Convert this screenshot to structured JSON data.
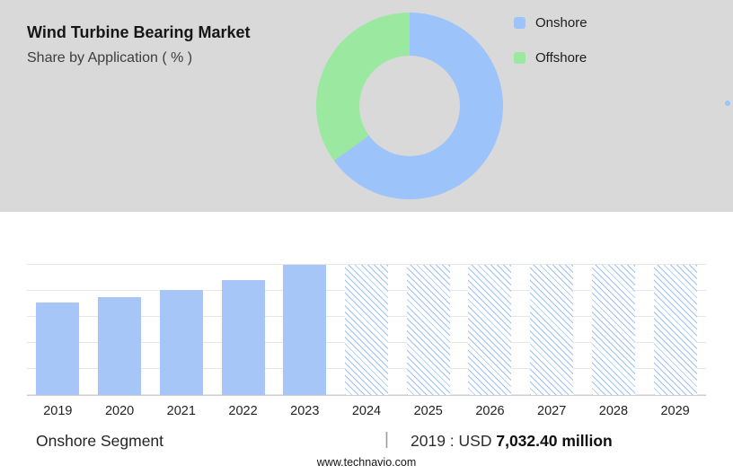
{
  "header": {
    "title": "Wind Turbine Bearing Market",
    "subtitle": "Share by Application ( % )"
  },
  "legend": [
    {
      "label": "Onshore",
      "color": "#9cc3fa"
    },
    {
      "label": "Offshore",
      "color": "#9be8a1"
    }
  ],
  "chart_data": [
    {
      "type": "pie",
      "title": "Share by Application ( % )",
      "donut": true,
      "slices": [
        {
          "label": "Onshore",
          "value": 65,
          "color": "#9cc3fa"
        },
        {
          "label": "Offshore",
          "value": 35,
          "color": "#9be8a1"
        }
      ],
      "legend_position": "right"
    },
    {
      "type": "bar",
      "categories": [
        "2019",
        "2020",
        "2021",
        "2022",
        "2023",
        "2024",
        "2025",
        "2026",
        "2027",
        "2028",
        "2029"
      ],
      "values_pct": [
        71,
        75,
        81,
        88,
        100,
        100,
        100,
        100,
        100,
        100,
        100
      ],
      "forecast": [
        false,
        false,
        false,
        false,
        false,
        true,
        true,
        true,
        true,
        true,
        true
      ],
      "labeled_value": {
        "year": "2019",
        "text": "USD 7,032.40 million"
      },
      "bar_color": "#a7c6f8",
      "forecast_style": "diagonal-hatch",
      "gridlines": 5,
      "grid": true,
      "xlabel": "",
      "ylabel": ""
    }
  ],
  "caption": {
    "segment_label": "Onshore Segment",
    "separator": "|",
    "value_prefix": "2019 : USD",
    "value_bold": "7,032.40 million",
    "website": "www.technavio.com"
  },
  "colors": {
    "hero_background": "#d9d9d9",
    "onshore_blue": "#9cc3fa",
    "offshore_green": "#9be8a1",
    "bar_blue": "#a7c6f8"
  }
}
